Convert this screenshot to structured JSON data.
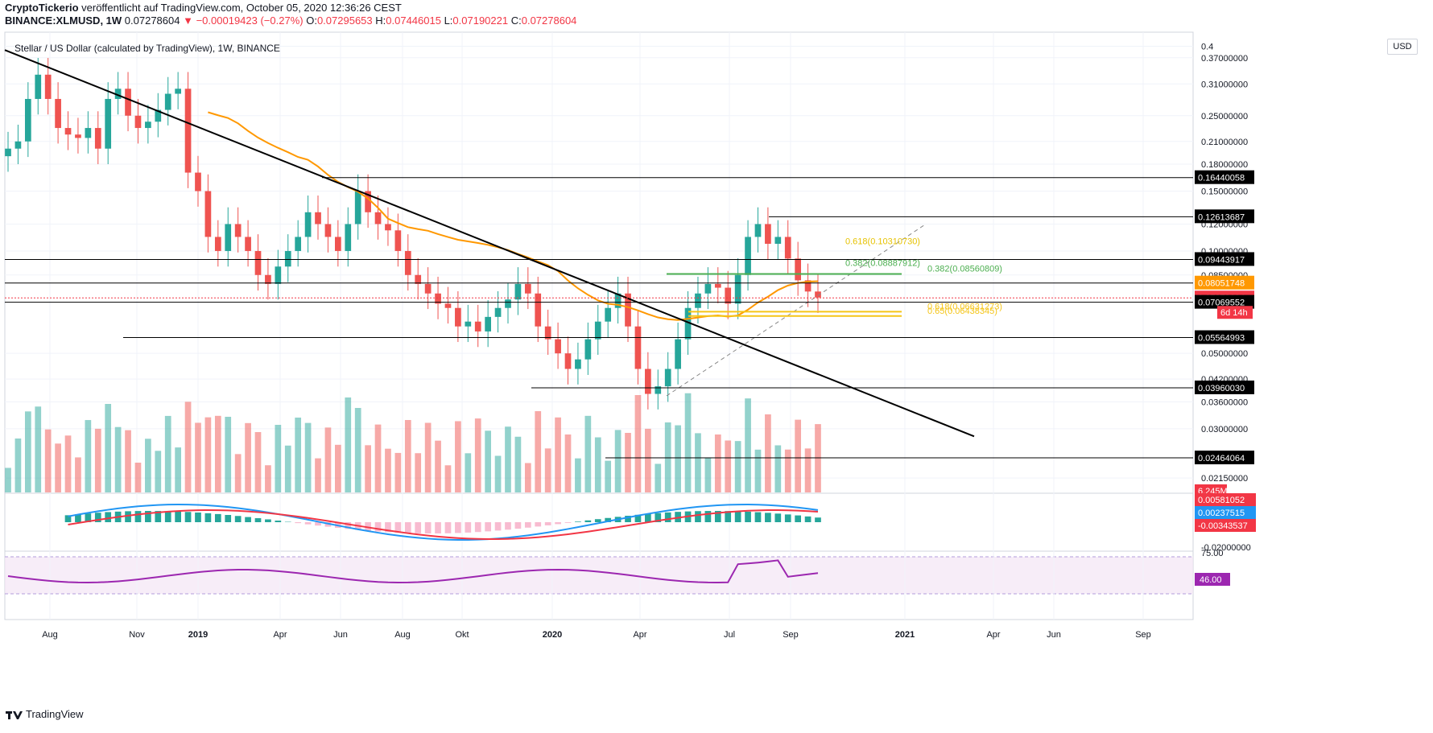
{
  "header": {
    "line1": {
      "author": "CryptoTickerio",
      "published": "veröffentlicht auf TradingView.com, October 05, 2020 12:36:26 CEST"
    },
    "line2": {
      "symbol": "BINANCE:XLMUSD, 1W",
      "price": "0.07278604",
      "change": "▼ −0.00019423 (−0.27%)",
      "o_label": "O:",
      "o": "0.07295653",
      "h_label": "H:",
      "h": "0.07446015",
      "l_label": "L:",
      "l": "0.07190221",
      "c_label": "C:",
      "c": "0.07278604"
    }
  },
  "currency_button": "USD",
  "footer": {
    "brand": "TradingView"
  },
  "colors": {
    "up": "#26a69a",
    "down": "#ef5350",
    "ma": "#ff9800",
    "macd": "#2196f3",
    "signal": "#f23645",
    "rsi": "#9c27b0"
  },
  "chart_data": {
    "type": "candlestick",
    "title": "Stellar / US Dollar (calculated by TradingView), 1W, BINANCE",
    "y_scale": "log",
    "y_axis_ticks": [
      "0.4",
      "0.37000000",
      "0.31000000",
      "0.25000000",
      "0.21000000",
      "0.18000000",
      "0.15000000",
      "0.12000000",
      "0.10000000",
      "0.08500000",
      "0.05000000",
      "0.04200000",
      "0.03600000",
      "0.03000000",
      "0.02150000"
    ],
    "x_axis_ticks": [
      "Aug",
      "Nov",
      "2019",
      "Apr",
      "Jun",
      "Aug",
      "Okt",
      "2020",
      "Apr",
      "Jul",
      "Sep",
      "2021",
      "Apr",
      "Jun",
      "Sep"
    ],
    "candles_approx_close": [
      0.2,
      0.21,
      0.28,
      0.33,
      0.28,
      0.23,
      0.22,
      0.215,
      0.23,
      0.2,
      0.28,
      0.3,
      0.25,
      0.23,
      0.24,
      0.26,
      0.29,
      0.3,
      0.17,
      0.15,
      0.11,
      0.1,
      0.12,
      0.11,
      0.1,
      0.085,
      0.08,
      0.09,
      0.1,
      0.11,
      0.13,
      0.12,
      0.11,
      0.1,
      0.12,
      0.15,
      0.13,
      0.12,
      0.115,
      0.1,
      0.085,
      0.08,
      0.075,
      0.07,
      0.068,
      0.06,
      0.062,
      0.058,
      0.064,
      0.068,
      0.072,
      0.08,
      0.075,
      0.06,
      0.055,
      0.05,
      0.045,
      0.048,
      0.055,
      0.062,
      0.068,
      0.075,
      0.06,
      0.045,
      0.038,
      0.04,
      0.045,
      0.055,
      0.068,
      0.075,
      0.08,
      0.078,
      0.07,
      0.085,
      0.11,
      0.12,
      0.105,
      0.11,
      0.095,
      0.082,
      0.076,
      0.073
    ],
    "horizontal_levels": [
      "0.16440058",
      "0.12613687",
      "0.09443917",
      "0.08051748",
      "0.07278604",
      "0.07069552",
      "0.05564993",
      "0.03960030",
      "0.02464064"
    ],
    "level_labels": {
      "price_countdown": "6d 14h"
    },
    "fib_levels": [
      {
        "label": "0.618(0.10310730)",
        "color": "#e6c200"
      },
      {
        "label": "0.382(0.08887912)",
        "color": "#4caf50"
      },
      {
        "label": "0.382(0.08560809)",
        "color": "#4caf50"
      },
      {
        "label": "0.618(0.06631273)",
        "color": "#f5c518"
      },
      {
        "label": "0.65(0.06438345)",
        "color": "#f5c518"
      }
    ],
    "volume_label": "6.245M",
    "macd": {
      "histogram_label": "0.00581052",
      "macd_label": "0.00237515",
      "signal_label": "-0.00343537",
      "axis_tick": "-0.02000000"
    },
    "rsi": {
      "value": "46.00",
      "upper": "75.00"
    }
  }
}
